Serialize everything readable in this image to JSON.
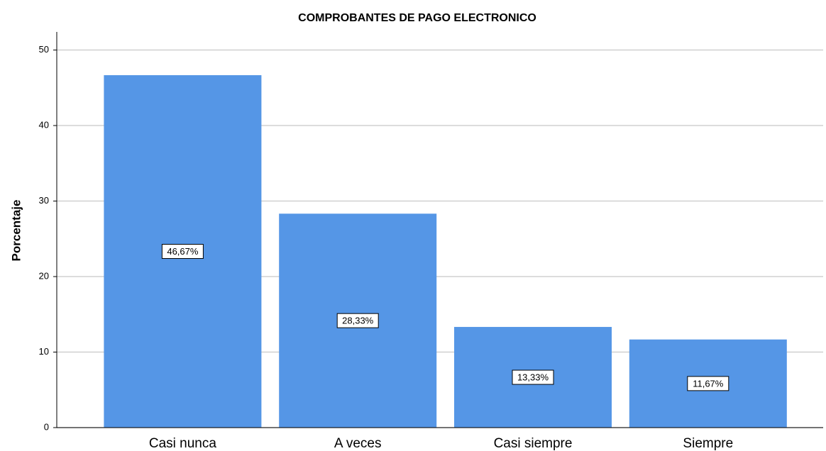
{
  "chart_data": {
    "type": "bar",
    "title": "COMPROBANTES DE PAGO ELECTRONICO",
    "y_label": "Porcentaje",
    "categories": [
      "Casi nunca",
      "A veces",
      "Casi siempre",
      "Siempre"
    ],
    "values": [
      46.67,
      28.33,
      13.33,
      11.67
    ],
    "value_labels": [
      "46,67%",
      "28,33%",
      "13,33%",
      "11,67%"
    ],
    "color": "#5596e6",
    "ylim": [
      0,
      52.4
    ],
    "yticks": [
      0,
      10,
      20,
      30,
      40,
      50
    ],
    "grid": true
  }
}
